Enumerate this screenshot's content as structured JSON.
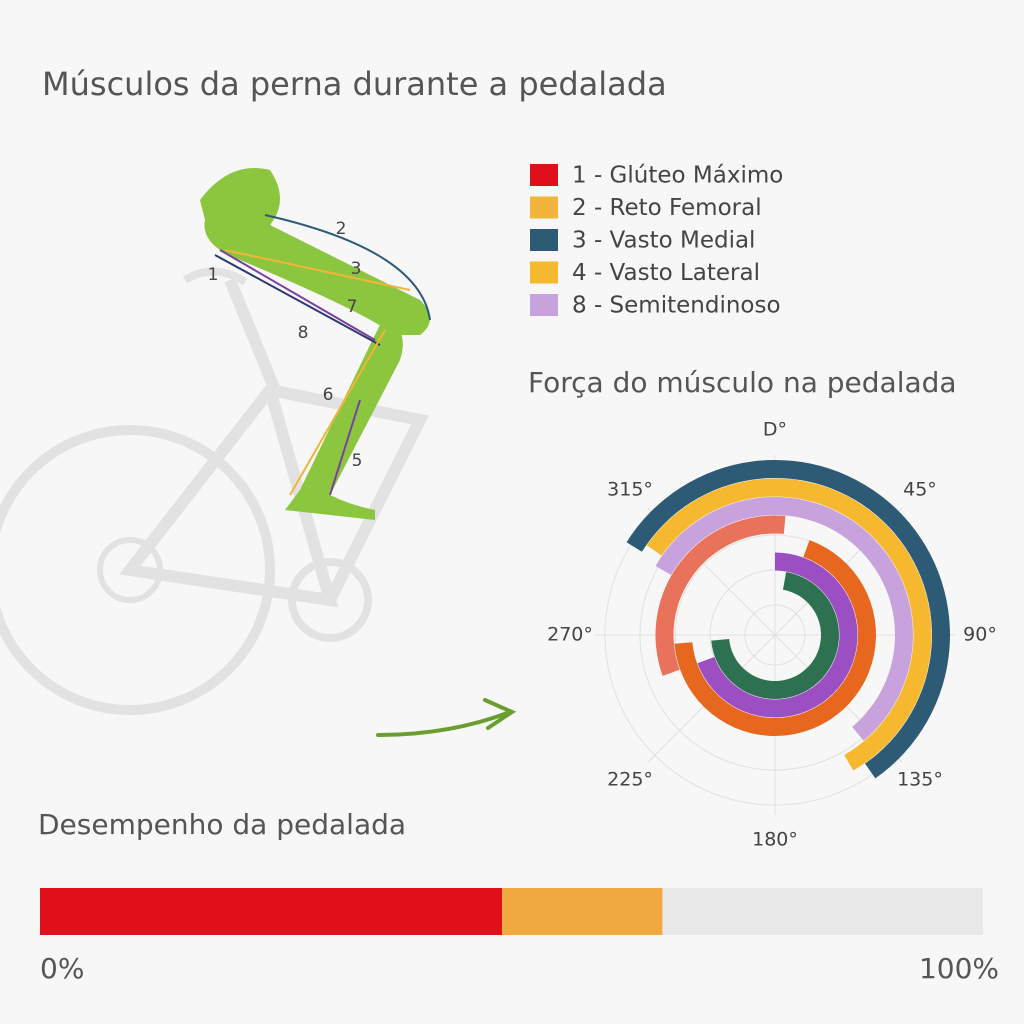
{
  "title": "Músculos da perna durante a pedalada",
  "legend": [
    {
      "label": "1 - Glúteo Máximo",
      "color": "#e0101a"
    },
    {
      "label": "2 - Reto Femoral",
      "color": "#f2b43a"
    },
    {
      "label": "3 - Vasto Medial",
      "color": "#2d5a75"
    },
    {
      "label": "4 - Vasto Lateral",
      "color": "#f5b82e"
    },
    {
      "label": "8 - Semitendinoso",
      "color": "#c8a2dc"
    }
  ],
  "figure_labels": [
    "1",
    "2",
    "3",
    "7",
    "8",
    "6",
    "5"
  ],
  "polar": {
    "title": "Força do músculo na pedalada",
    "angle_labels": [
      {
        "value": 0,
        "label": "D°"
      },
      {
        "value": 45,
        "label": "45°"
      },
      {
        "value": 90,
        "label": "90°"
      },
      {
        "value": 135,
        "label": "135°"
      },
      {
        "value": 180,
        "label": "180°"
      },
      {
        "value": 225,
        "label": "225°"
      },
      {
        "value": 270,
        "label": "270°"
      },
      {
        "value": 315,
        "label": "315°"
      }
    ],
    "rings": [
      {
        "color": "#2d5a75",
        "start": 302,
        "end": 145
      },
      {
        "color": "#f5b82e",
        "start": 305,
        "end": 150
      },
      {
        "color": "#c8a2dc",
        "start": 300,
        "end": 140
      },
      {
        "color": "#e8735a",
        "start": 250,
        "end": 5
      },
      {
        "color": "#e8671e",
        "start": 20,
        "end": 265
      },
      {
        "color": "#9b4fc3",
        "start": 0,
        "end": 250
      },
      {
        "color": "#2e7150",
        "start": 10,
        "end": 265
      }
    ]
  },
  "performance": {
    "title": "Desempenho da pedalada",
    "xlim": [
      0,
      100
    ],
    "segments": [
      {
        "color": "#e0101a",
        "value": 49
      },
      {
        "color": "#f0a840",
        "value": 17
      }
    ],
    "ticks": [
      {
        "value": 0,
        "label": "0%"
      },
      {
        "value": 100,
        "label": "100%"
      }
    ]
  }
}
